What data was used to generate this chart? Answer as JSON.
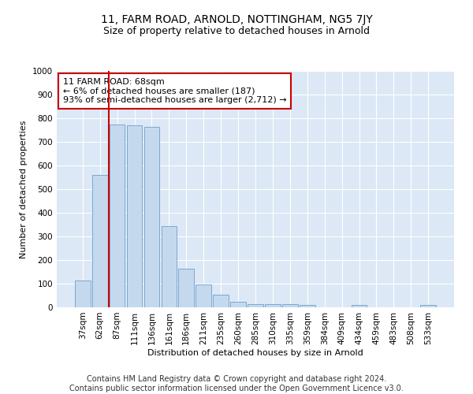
{
  "title": "11, FARM ROAD, ARNOLD, NOTTINGHAM, NG5 7JY",
  "subtitle": "Size of property relative to detached houses in Arnold",
  "xlabel": "Distribution of detached houses by size in Arnold",
  "ylabel": "Number of detached properties",
  "categories": [
    "37sqm",
    "62sqm",
    "87sqm",
    "111sqm",
    "136sqm",
    "161sqm",
    "186sqm",
    "211sqm",
    "235sqm",
    "260sqm",
    "285sqm",
    "310sqm",
    "335sqm",
    "359sqm",
    "384sqm",
    "409sqm",
    "434sqm",
    "459sqm",
    "483sqm",
    "508sqm",
    "533sqm"
  ],
  "values": [
    113,
    560,
    775,
    770,
    765,
    345,
    163,
    98,
    52,
    22,
    14,
    14,
    13,
    9,
    0,
    0,
    10,
    0,
    0,
    0,
    10
  ],
  "bar_color": "#c5d9ee",
  "bar_edge_color": "#7aa8d0",
  "vline_x": 1.5,
  "vline_color": "#cc0000",
  "annotation_text": "11 FARM ROAD: 68sqm\n← 6% of detached houses are smaller (187)\n93% of semi-detached houses are larger (2,712) →",
  "annotation_box_facecolor": "#ffffff",
  "annotation_box_edgecolor": "#cc0000",
  "ylim": [
    0,
    1000
  ],
  "yticks": [
    0,
    100,
    200,
    300,
    400,
    500,
    600,
    700,
    800,
    900,
    1000
  ],
  "bg_color": "#dce8f5",
  "grid_color": "#ffffff",
  "footer_line1": "Contains HM Land Registry data © Crown copyright and database right 2024.",
  "footer_line2": "Contains public sector information licensed under the Open Government Licence v3.0.",
  "title_fontsize": 10,
  "subtitle_fontsize": 9,
  "axis_label_fontsize": 8,
  "tick_fontsize": 7.5,
  "annotation_fontsize": 8,
  "footer_fontsize": 7
}
